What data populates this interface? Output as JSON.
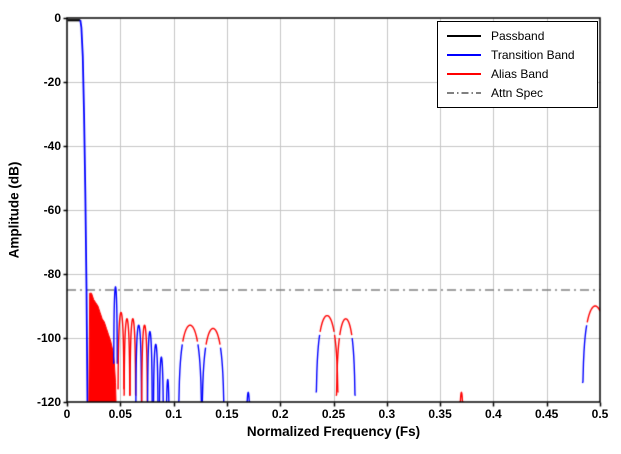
{
  "chart_data": {
    "type": "line",
    "title": "",
    "xlabel": "Normalized Frequency (Fs)",
    "ylabel": "Amplitude (dB)",
    "xlim": [
      0,
      0.5
    ],
    "ylim": [
      -120,
      0
    ],
    "grid": true,
    "legend_position": "top-right",
    "colors": {
      "black": "#000000",
      "blue": "#0000ff",
      "red": "#ff0000",
      "gray": "#808080",
      "grid": "#c6c6c6"
    },
    "xticks": [
      {
        "v": 0,
        "label": "0"
      },
      {
        "v": 0.05,
        "label": "0.05"
      },
      {
        "v": 0.1,
        "label": "0.1"
      },
      {
        "v": 0.15,
        "label": "0.15"
      },
      {
        "v": 0.2,
        "label": "0.2"
      },
      {
        "v": 0.25,
        "label": "0.25"
      },
      {
        "v": 0.3,
        "label": "0.3"
      },
      {
        "v": 0.35,
        "label": "0.35"
      },
      {
        "v": 0.4,
        "label": "0.4"
      },
      {
        "v": 0.45,
        "label": "0.45"
      },
      {
        "v": 0.5,
        "label": "0.5"
      }
    ],
    "yticks": [
      {
        "v": 0,
        "label": "0"
      },
      {
        "v": -20,
        "label": "-20"
      },
      {
        "v": -40,
        "label": "-40"
      },
      {
        "v": -60,
        "label": "-60"
      },
      {
        "v": -80,
        "label": "-80"
      },
      {
        "v": -100,
        "label": "-100"
      },
      {
        "v": -120,
        "label": "-120"
      }
    ],
    "legend": [
      {
        "label": "Passband",
        "color": "black",
        "dash": "solid"
      },
      {
        "label": "Transition Band",
        "color": "blue",
        "dash": "solid"
      },
      {
        "label": "Alias Band",
        "color": "red",
        "dash": "solid"
      },
      {
        "label": "Attn Spec",
        "color": "gray",
        "dash": "dashdot"
      }
    ],
    "attn_spec": {
      "y": -85,
      "color": "gray",
      "dash": "dashdot"
    },
    "segments": [
      {
        "name": "passband",
        "kind": "line",
        "color": "black",
        "width": 2.2,
        "points": [
          [
            0.0005,
            -0.7
          ],
          [
            0.0125,
            -0.7
          ]
        ]
      },
      {
        "name": "transition-main",
        "kind": "line",
        "color": "blue",
        "width": 1.8,
        "points": [
          [
            0.0125,
            -0.7
          ],
          [
            0.0135,
            -3
          ],
          [
            0.0148,
            -12
          ],
          [
            0.016,
            -30
          ],
          [
            0.0172,
            -55
          ],
          [
            0.0183,
            -85
          ],
          [
            0.0192,
            -120
          ]
        ]
      },
      {
        "name": "alias-mass",
        "kind": "fill",
        "color": "red",
        "points": [
          [
            0.0205,
            -120
          ],
          [
            0.0213,
            -86
          ],
          [
            0.023,
            -86
          ],
          [
            0.025,
            -88
          ],
          [
            0.027,
            -89
          ],
          [
            0.029,
            -90
          ],
          [
            0.031,
            -92
          ],
          [
            0.033,
            -94
          ],
          [
            0.035,
            -95
          ],
          [
            0.037,
            -97
          ],
          [
            0.039,
            -99
          ],
          [
            0.041,
            -101
          ],
          [
            0.043,
            -104
          ],
          [
            0.0445,
            -108
          ],
          [
            0.0455,
            -114
          ],
          [
            0.046,
            -120
          ]
        ]
      },
      {
        "name": "alias-lobes",
        "kind": "lobes",
        "items": [
          {
            "x0": 0.0438,
            "x1": 0.0472,
            "peak": -84,
            "top": "blue",
            "edge": "blue",
            "edges": "both"
          },
          {
            "x0": 0.0478,
            "x1": 0.0535,
            "peak": -92,
            "top": "red",
            "edge": "red",
            "edges": "both"
          },
          {
            "x0": 0.0535,
            "x1": 0.059,
            "peak": -94,
            "top": "red",
            "edge": "red",
            "edges": "both"
          },
          {
            "x0": 0.059,
            "x1": 0.0645,
            "peak": -94,
            "top": "red",
            "edge": "red",
            "edges": "both"
          },
          {
            "x0": 0.0645,
            "x1": 0.07,
            "peak": -96,
            "top": "blue",
            "edge": "blue",
            "edges": "both"
          },
          {
            "x0": 0.07,
            "x1": 0.0755,
            "peak": -96,
            "top": "red",
            "edge": "red",
            "edges": "both"
          },
          {
            "x0": 0.0755,
            "x1": 0.08,
            "peak": -98,
            "top": "blue",
            "edge": "blue",
            "edges": "both"
          },
          {
            "x0": 0.081,
            "x1": 0.0855,
            "peak": -102,
            "top": "blue",
            "edge": "blue",
            "edges": "both"
          },
          {
            "x0": 0.0865,
            "x1": 0.0905,
            "peak": -106,
            "top": "blue",
            "edge": "blue",
            "edges": "both"
          },
          {
            "x0": 0.093,
            "x1": 0.096,
            "peak": -113,
            "top": "blue",
            "edge": "blue",
            "edges": "both"
          },
          {
            "x0": 0.1045,
            "x1": 0.1265,
            "peak": -96,
            "top": "red",
            "edge": "blue",
            "edges": "both"
          },
          {
            "x0": 0.1265,
            "x1": 0.1475,
            "peak": -97,
            "top": "red",
            "edge": "blue",
            "edges": "both"
          },
          {
            "x0": 0.168,
            "x1": 0.172,
            "peak": -117,
            "top": "blue",
            "edge": "blue",
            "edges": "both"
          },
          {
            "x0": 0.2335,
            "x1": 0.2545,
            "peak": -93,
            "top": "red",
            "edge": "blue",
            "edges": "left"
          },
          {
            "x0": 0.2525,
            "x1": 0.2705,
            "peak": -94,
            "top": "red",
            "edge": "blue",
            "edges": "right"
          },
          {
            "x0": 0.368,
            "x1": 0.372,
            "peak": -117,
            "top": "red",
            "edge": "red",
            "edges": "both"
          },
          {
            "x0": 0.4835,
            "x1": 0.5075,
            "peak": -90,
            "top": "red",
            "edge": "blue",
            "edges": "left"
          }
        ]
      }
    ]
  }
}
